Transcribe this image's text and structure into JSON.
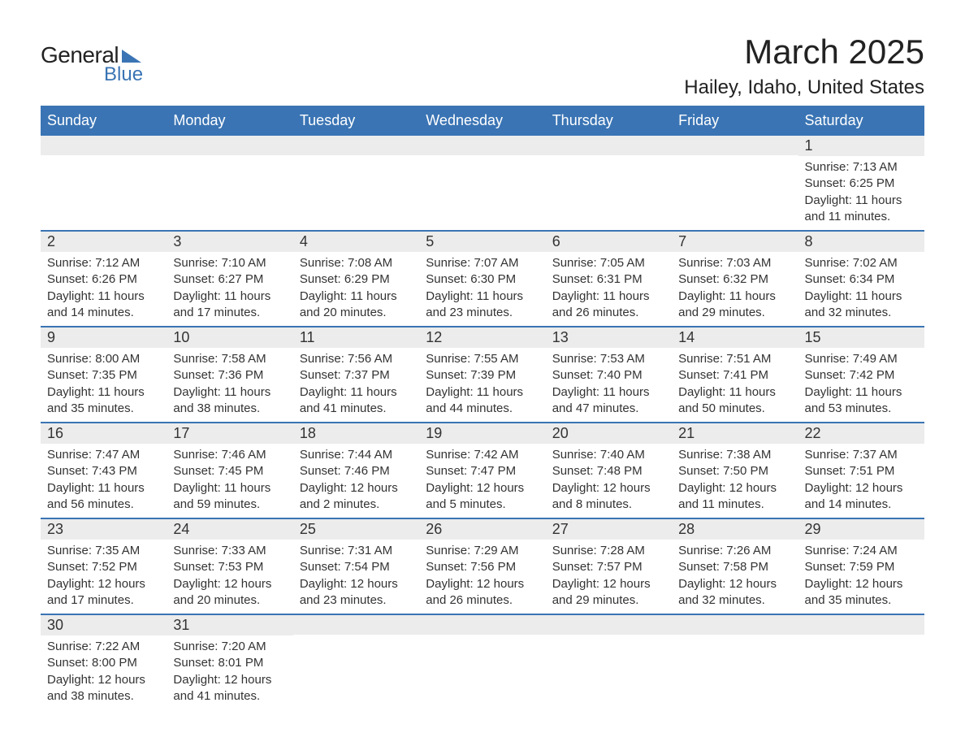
{
  "brand": {
    "word1": "General",
    "word2": "Blue",
    "accent_color": "#3a74b4"
  },
  "title": "March 2025",
  "location": "Hailey, Idaho, United States",
  "colors": {
    "header_bg": "#3a74b4",
    "header_text": "#ffffff",
    "band_bg": "#ececec",
    "text": "#333333",
    "page_bg": "#ffffff"
  },
  "fonts": {
    "title_size_pt": 32,
    "location_size_pt": 18,
    "dow_size_pt": 14,
    "body_size_pt": 11
  },
  "days_of_week": [
    "Sunday",
    "Monday",
    "Tuesday",
    "Wednesday",
    "Thursday",
    "Friday",
    "Saturday"
  ],
  "weeks": [
    [
      {
        "empty": true
      },
      {
        "empty": true
      },
      {
        "empty": true
      },
      {
        "empty": true
      },
      {
        "empty": true
      },
      {
        "empty": true
      },
      {
        "day": "1",
        "sunrise": "Sunrise: 7:13 AM",
        "sunset": "Sunset: 6:25 PM",
        "dl1": "Daylight: 11 hours",
        "dl2": "and 11 minutes."
      }
    ],
    [
      {
        "day": "2",
        "sunrise": "Sunrise: 7:12 AM",
        "sunset": "Sunset: 6:26 PM",
        "dl1": "Daylight: 11 hours",
        "dl2": "and 14 minutes."
      },
      {
        "day": "3",
        "sunrise": "Sunrise: 7:10 AM",
        "sunset": "Sunset: 6:27 PM",
        "dl1": "Daylight: 11 hours",
        "dl2": "and 17 minutes."
      },
      {
        "day": "4",
        "sunrise": "Sunrise: 7:08 AM",
        "sunset": "Sunset: 6:29 PM",
        "dl1": "Daylight: 11 hours",
        "dl2": "and 20 minutes."
      },
      {
        "day": "5",
        "sunrise": "Sunrise: 7:07 AM",
        "sunset": "Sunset: 6:30 PM",
        "dl1": "Daylight: 11 hours",
        "dl2": "and 23 minutes."
      },
      {
        "day": "6",
        "sunrise": "Sunrise: 7:05 AM",
        "sunset": "Sunset: 6:31 PM",
        "dl1": "Daylight: 11 hours",
        "dl2": "and 26 minutes."
      },
      {
        "day": "7",
        "sunrise": "Sunrise: 7:03 AM",
        "sunset": "Sunset: 6:32 PM",
        "dl1": "Daylight: 11 hours",
        "dl2": "and 29 minutes."
      },
      {
        "day": "8",
        "sunrise": "Sunrise: 7:02 AM",
        "sunset": "Sunset: 6:34 PM",
        "dl1": "Daylight: 11 hours",
        "dl2": "and 32 minutes."
      }
    ],
    [
      {
        "day": "9",
        "sunrise": "Sunrise: 8:00 AM",
        "sunset": "Sunset: 7:35 PM",
        "dl1": "Daylight: 11 hours",
        "dl2": "and 35 minutes."
      },
      {
        "day": "10",
        "sunrise": "Sunrise: 7:58 AM",
        "sunset": "Sunset: 7:36 PM",
        "dl1": "Daylight: 11 hours",
        "dl2": "and 38 minutes."
      },
      {
        "day": "11",
        "sunrise": "Sunrise: 7:56 AM",
        "sunset": "Sunset: 7:37 PM",
        "dl1": "Daylight: 11 hours",
        "dl2": "and 41 minutes."
      },
      {
        "day": "12",
        "sunrise": "Sunrise: 7:55 AM",
        "sunset": "Sunset: 7:39 PM",
        "dl1": "Daylight: 11 hours",
        "dl2": "and 44 minutes."
      },
      {
        "day": "13",
        "sunrise": "Sunrise: 7:53 AM",
        "sunset": "Sunset: 7:40 PM",
        "dl1": "Daylight: 11 hours",
        "dl2": "and 47 minutes."
      },
      {
        "day": "14",
        "sunrise": "Sunrise: 7:51 AM",
        "sunset": "Sunset: 7:41 PM",
        "dl1": "Daylight: 11 hours",
        "dl2": "and 50 minutes."
      },
      {
        "day": "15",
        "sunrise": "Sunrise: 7:49 AM",
        "sunset": "Sunset: 7:42 PM",
        "dl1": "Daylight: 11 hours",
        "dl2": "and 53 minutes."
      }
    ],
    [
      {
        "day": "16",
        "sunrise": "Sunrise: 7:47 AM",
        "sunset": "Sunset: 7:43 PM",
        "dl1": "Daylight: 11 hours",
        "dl2": "and 56 minutes."
      },
      {
        "day": "17",
        "sunrise": "Sunrise: 7:46 AM",
        "sunset": "Sunset: 7:45 PM",
        "dl1": "Daylight: 11 hours",
        "dl2": "and 59 minutes."
      },
      {
        "day": "18",
        "sunrise": "Sunrise: 7:44 AM",
        "sunset": "Sunset: 7:46 PM",
        "dl1": "Daylight: 12 hours",
        "dl2": "and 2 minutes."
      },
      {
        "day": "19",
        "sunrise": "Sunrise: 7:42 AM",
        "sunset": "Sunset: 7:47 PM",
        "dl1": "Daylight: 12 hours",
        "dl2": "and 5 minutes."
      },
      {
        "day": "20",
        "sunrise": "Sunrise: 7:40 AM",
        "sunset": "Sunset: 7:48 PM",
        "dl1": "Daylight: 12 hours",
        "dl2": "and 8 minutes."
      },
      {
        "day": "21",
        "sunrise": "Sunrise: 7:38 AM",
        "sunset": "Sunset: 7:50 PM",
        "dl1": "Daylight: 12 hours",
        "dl2": "and 11 minutes."
      },
      {
        "day": "22",
        "sunrise": "Sunrise: 7:37 AM",
        "sunset": "Sunset: 7:51 PM",
        "dl1": "Daylight: 12 hours",
        "dl2": "and 14 minutes."
      }
    ],
    [
      {
        "day": "23",
        "sunrise": "Sunrise: 7:35 AM",
        "sunset": "Sunset: 7:52 PM",
        "dl1": "Daylight: 12 hours",
        "dl2": "and 17 minutes."
      },
      {
        "day": "24",
        "sunrise": "Sunrise: 7:33 AM",
        "sunset": "Sunset: 7:53 PM",
        "dl1": "Daylight: 12 hours",
        "dl2": "and 20 minutes."
      },
      {
        "day": "25",
        "sunrise": "Sunrise: 7:31 AM",
        "sunset": "Sunset: 7:54 PM",
        "dl1": "Daylight: 12 hours",
        "dl2": "and 23 minutes."
      },
      {
        "day": "26",
        "sunrise": "Sunrise: 7:29 AM",
        "sunset": "Sunset: 7:56 PM",
        "dl1": "Daylight: 12 hours",
        "dl2": "and 26 minutes."
      },
      {
        "day": "27",
        "sunrise": "Sunrise: 7:28 AM",
        "sunset": "Sunset: 7:57 PM",
        "dl1": "Daylight: 12 hours",
        "dl2": "and 29 minutes."
      },
      {
        "day": "28",
        "sunrise": "Sunrise: 7:26 AM",
        "sunset": "Sunset: 7:58 PM",
        "dl1": "Daylight: 12 hours",
        "dl2": "and 32 minutes."
      },
      {
        "day": "29",
        "sunrise": "Sunrise: 7:24 AM",
        "sunset": "Sunset: 7:59 PM",
        "dl1": "Daylight: 12 hours",
        "dl2": "and 35 minutes."
      }
    ],
    [
      {
        "day": "30",
        "sunrise": "Sunrise: 7:22 AM",
        "sunset": "Sunset: 8:00 PM",
        "dl1": "Daylight: 12 hours",
        "dl2": "and 38 minutes."
      },
      {
        "day": "31",
        "sunrise": "Sunrise: 7:20 AM",
        "sunset": "Sunset: 8:01 PM",
        "dl1": "Daylight: 12 hours",
        "dl2": "and 41 minutes."
      },
      {
        "empty": true
      },
      {
        "empty": true
      },
      {
        "empty": true
      },
      {
        "empty": true
      },
      {
        "empty": true
      }
    ]
  ]
}
